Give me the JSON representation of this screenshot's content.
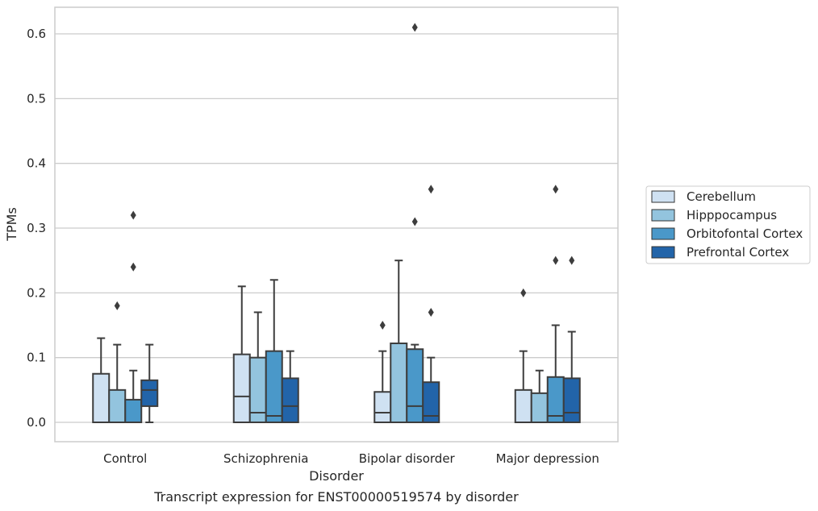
{
  "chart_data": {
    "type": "box",
    "xlabel": "Disorder",
    "ylabel": "TPMs",
    "caption": "Transcript expression for ENST00000519574 by disorder",
    "categories": [
      "Control",
      "Schizophrenia",
      "Bipolar disorder",
      "Major depression"
    ],
    "ylim": [
      -0.03,
      0.64
    ],
    "yticks": [
      0.0,
      0.1,
      0.2,
      0.3,
      0.4,
      0.5,
      0.6
    ],
    "ytick_labels": [
      "0.0",
      "0.1",
      "0.2",
      "0.3",
      "0.4",
      "0.5",
      "0.6"
    ],
    "grid": "horizontal",
    "legend_position": "right, outside plot",
    "series": [
      {
        "name": "Cerebellum",
        "color": "#cfe1f2",
        "boxes": [
          {
            "q1": 0.0,
            "median": 0.0,
            "q3": 0.075,
            "whislo": 0.0,
            "whishi": 0.13,
            "fliers": []
          },
          {
            "q1": 0.0,
            "median": 0.04,
            "q3": 0.105,
            "whislo": 0.0,
            "whishi": 0.21,
            "fliers": []
          },
          {
            "q1": 0.0,
            "median": 0.015,
            "q3": 0.047,
            "whislo": 0.0,
            "whishi": 0.11,
            "fliers": [
              0.15
            ]
          },
          {
            "q1": 0.0,
            "median": 0.0,
            "q3": 0.05,
            "whislo": 0.0,
            "whishi": 0.11,
            "fliers": [
              0.2
            ]
          }
        ]
      },
      {
        "name": "Hipppocampus",
        "color": "#93c4de",
        "boxes": [
          {
            "q1": 0.0,
            "median": 0.0,
            "q3": 0.05,
            "whislo": 0.0,
            "whishi": 0.12,
            "fliers": [
              0.18
            ]
          },
          {
            "q1": 0.0,
            "median": 0.015,
            "q3": 0.1,
            "whislo": 0.0,
            "whishi": 0.17,
            "fliers": []
          },
          {
            "q1": 0.0,
            "median": 0.0,
            "q3": 0.122,
            "whislo": 0.0,
            "whishi": 0.25,
            "fliers": []
          },
          {
            "q1": 0.0,
            "median": 0.0,
            "q3": 0.045,
            "whislo": 0.0,
            "whishi": 0.08,
            "fliers": []
          }
        ]
      },
      {
        "name": "Orbitofontal Cortex",
        "color": "#4a98c9",
        "boxes": [
          {
            "q1": 0.0,
            "median": 0.0,
            "q3": 0.035,
            "whislo": 0.0,
            "whishi": 0.08,
            "fliers": [
              0.24,
              0.32
            ]
          },
          {
            "q1": 0.0,
            "median": 0.01,
            "q3": 0.11,
            "whislo": 0.0,
            "whishi": 0.22,
            "fliers": []
          },
          {
            "q1": 0.0,
            "median": 0.025,
            "q3": 0.113,
            "whislo": 0.0,
            "whishi": 0.12,
            "fliers": [
              0.31,
              0.61
            ]
          },
          {
            "q1": 0.0,
            "median": 0.01,
            "q3": 0.07,
            "whislo": 0.0,
            "whishi": 0.15,
            "fliers": [
              0.25,
              0.36
            ]
          }
        ]
      },
      {
        "name": "Prefrontal Cortex",
        "color": "#2264a9",
        "boxes": [
          {
            "q1": 0.025,
            "median": 0.05,
            "q3": 0.065,
            "whislo": 0.0,
            "whishi": 0.12,
            "fliers": []
          },
          {
            "q1": 0.0,
            "median": 0.025,
            "q3": 0.068,
            "whislo": 0.0,
            "whishi": 0.11,
            "fliers": []
          },
          {
            "q1": 0.0,
            "median": 0.01,
            "q3": 0.062,
            "whislo": 0.0,
            "whishi": 0.1,
            "fliers": [
              0.17,
              0.36
            ]
          },
          {
            "q1": 0.0,
            "median": 0.015,
            "q3": 0.068,
            "whislo": 0.0,
            "whishi": 0.14,
            "fliers": [
              0.25
            ]
          }
        ]
      }
    ]
  }
}
